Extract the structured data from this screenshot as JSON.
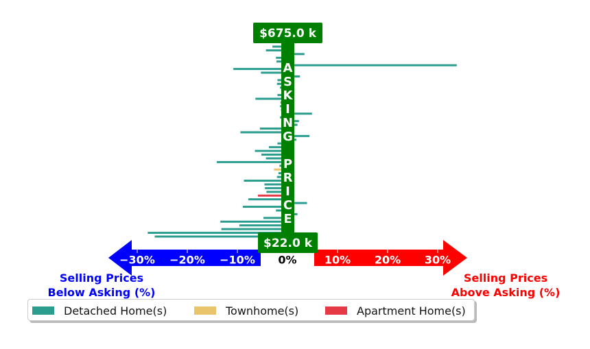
{
  "chart_data": {
    "type": "bar",
    "orientation": "horizontal",
    "x_tick_labels": [
      "−30%",
      "−20%",
      "−10%",
      "0%",
      "10%",
      "20%",
      "30%"
    ],
    "x_ticks": [
      -30,
      -20,
      -10,
      0,
      10,
      20,
      30
    ],
    "xlim": [
      -34,
      36
    ],
    "center_label": [
      "A",
      "S",
      "K",
      "I",
      "N",
      "G",
      " ",
      "P",
      "R",
      "I",
      "C",
      "E"
    ],
    "price_top": "$675.0 k",
    "price_bottom": "$22.0 k",
    "left_label_line1": "Selling Prices",
    "left_label_line2": "Below Asking (%)",
    "right_label_line1": "Selling Prices",
    "right_label_line2": "Above Asking (%)",
    "legend": [
      {
        "name": "Detached Home(s)",
        "color": "#2a9d8f"
      },
      {
        "name": "Townhome(s)",
        "color": "#e9c46a"
      },
      {
        "name": "Apartment Home(s)",
        "color": "#e63946"
      }
    ],
    "colors": {
      "detached": "#2a9d8f",
      "townhome": "#e9c46a",
      "apartment": "#e63946",
      "center_band": "#008000",
      "below_arrow": "#0000ff",
      "above_arrow": "#ff0000"
    },
    "bars": [
      {
        "value": -3.0,
        "type": "detached"
      },
      {
        "value": -4.3,
        "type": "detached"
      },
      {
        "value": 3.4,
        "type": "detached"
      },
      {
        "value": -2.3,
        "type": "detached"
      },
      {
        "value": -2.2,
        "type": "detached"
      },
      {
        "value": 33.8,
        "type": "detached"
      },
      {
        "value": -10.8,
        "type": "detached"
      },
      {
        "value": -5.3,
        "type": "detached"
      },
      {
        "value": 2.5,
        "type": "detached"
      },
      {
        "value": -2.0,
        "type": "detached"
      },
      {
        "value": -2.1,
        "type": "detached"
      },
      {
        "value": -1.5,
        "type": "detached"
      },
      {
        "value": -1.2,
        "type": "detached"
      },
      {
        "value": -2.0,
        "type": "detached"
      },
      {
        "value": -6.4,
        "type": "detached"
      },
      {
        "value": -1.4,
        "type": "detached"
      },
      {
        "value": -1.5,
        "type": "detached"
      },
      {
        "value": -1.3,
        "type": "detached"
      },
      {
        "value": 4.9,
        "type": "detached"
      },
      {
        "value": -1.5,
        "type": "detached"
      },
      {
        "value": 2.3,
        "type": "detached"
      },
      {
        "value": 2.0,
        "type": "detached"
      },
      {
        "value": -5.5,
        "type": "detached"
      },
      {
        "value": -9.4,
        "type": "detached"
      },
      {
        "value": 4.4,
        "type": "detached"
      },
      {
        "value": 1.8,
        "type": "detached"
      },
      {
        "value": -2.0,
        "type": "detached"
      },
      {
        "value": -3.7,
        "type": "detached"
      },
      {
        "value": -6.5,
        "type": "detached"
      },
      {
        "value": -5.2,
        "type": "detached"
      },
      {
        "value": -4.3,
        "type": "detached"
      },
      {
        "value": -14.1,
        "type": "detached"
      },
      {
        "value": -1.6,
        "type": "detached"
      },
      {
        "value": -2.7,
        "type": "townhome"
      },
      {
        "value": -1.8,
        "type": "detached"
      },
      {
        "value": -2.1,
        "type": "detached"
      },
      {
        "value": -8.7,
        "type": "detached"
      },
      {
        "value": -4.6,
        "type": "detached"
      },
      {
        "value": -4.5,
        "type": "detached"
      },
      {
        "value": -4.2,
        "type": "detached"
      },
      {
        "value": -5.9,
        "type": "apartment"
      },
      {
        "value": -7.8,
        "type": "detached"
      },
      {
        "value": 3.9,
        "type": "detached"
      },
      {
        "value": -8.9,
        "type": "detached"
      },
      {
        "value": -2.3,
        "type": "detached"
      },
      {
        "value": 2.0,
        "type": "detached"
      },
      {
        "value": -4.8,
        "type": "detached"
      },
      {
        "value": -13.4,
        "type": "detached"
      },
      {
        "value": -9.6,
        "type": "detached"
      },
      {
        "value": -13.2,
        "type": "detached"
      },
      {
        "value": -27.9,
        "type": "detached"
      },
      {
        "value": -26.5,
        "type": "detached"
      }
    ]
  }
}
